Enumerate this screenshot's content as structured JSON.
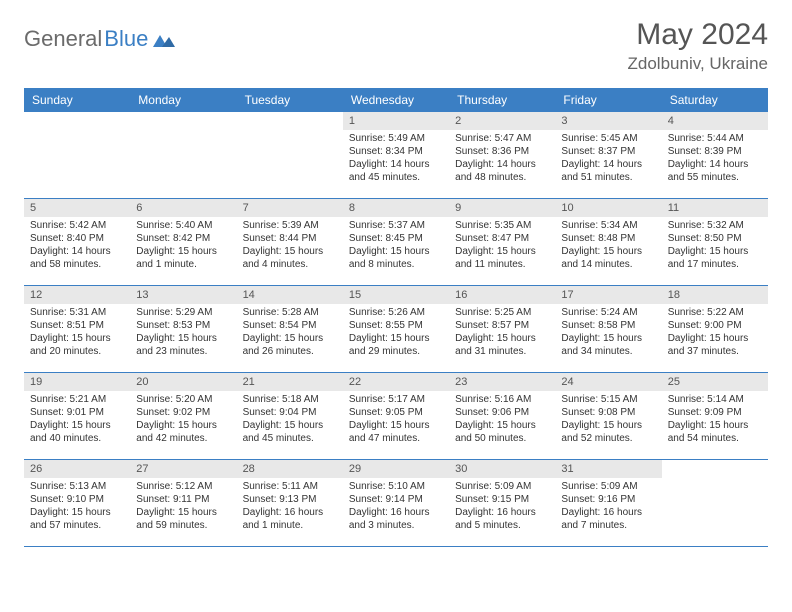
{
  "logo": {
    "part1": "General",
    "part2": "Blue"
  },
  "title": "May 2024",
  "location": "Zdolbuniv, Ukraine",
  "day_names": [
    "Sunday",
    "Monday",
    "Tuesday",
    "Wednesday",
    "Thursday",
    "Friday",
    "Saturday"
  ],
  "colors": {
    "header_bg": "#3b7fc4",
    "header_fg": "#ffffff",
    "daynum_bg": "#e8e8e8",
    "text": "#343434",
    "logo_gray": "#6b6b6b",
    "logo_blue": "#3b7fc4"
  },
  "weeks": [
    [
      {
        "empty": true
      },
      {
        "empty": true
      },
      {
        "empty": true
      },
      {
        "n": "1",
        "sr": "Sunrise: 5:49 AM",
        "ss": "Sunset: 8:34 PM",
        "d1": "Daylight: 14 hours",
        "d2": "and 45 minutes."
      },
      {
        "n": "2",
        "sr": "Sunrise: 5:47 AM",
        "ss": "Sunset: 8:36 PM",
        "d1": "Daylight: 14 hours",
        "d2": "and 48 minutes."
      },
      {
        "n": "3",
        "sr": "Sunrise: 5:45 AM",
        "ss": "Sunset: 8:37 PM",
        "d1": "Daylight: 14 hours",
        "d2": "and 51 minutes."
      },
      {
        "n": "4",
        "sr": "Sunrise: 5:44 AM",
        "ss": "Sunset: 8:39 PM",
        "d1": "Daylight: 14 hours",
        "d2": "and 55 minutes."
      }
    ],
    [
      {
        "n": "5",
        "sr": "Sunrise: 5:42 AM",
        "ss": "Sunset: 8:40 PM",
        "d1": "Daylight: 14 hours",
        "d2": "and 58 minutes."
      },
      {
        "n": "6",
        "sr": "Sunrise: 5:40 AM",
        "ss": "Sunset: 8:42 PM",
        "d1": "Daylight: 15 hours",
        "d2": "and 1 minute."
      },
      {
        "n": "7",
        "sr": "Sunrise: 5:39 AM",
        "ss": "Sunset: 8:44 PM",
        "d1": "Daylight: 15 hours",
        "d2": "and 4 minutes."
      },
      {
        "n": "8",
        "sr": "Sunrise: 5:37 AM",
        "ss": "Sunset: 8:45 PM",
        "d1": "Daylight: 15 hours",
        "d2": "and 8 minutes."
      },
      {
        "n": "9",
        "sr": "Sunrise: 5:35 AM",
        "ss": "Sunset: 8:47 PM",
        "d1": "Daylight: 15 hours",
        "d2": "and 11 minutes."
      },
      {
        "n": "10",
        "sr": "Sunrise: 5:34 AM",
        "ss": "Sunset: 8:48 PM",
        "d1": "Daylight: 15 hours",
        "d2": "and 14 minutes."
      },
      {
        "n": "11",
        "sr": "Sunrise: 5:32 AM",
        "ss": "Sunset: 8:50 PM",
        "d1": "Daylight: 15 hours",
        "d2": "and 17 minutes."
      }
    ],
    [
      {
        "n": "12",
        "sr": "Sunrise: 5:31 AM",
        "ss": "Sunset: 8:51 PM",
        "d1": "Daylight: 15 hours",
        "d2": "and 20 minutes."
      },
      {
        "n": "13",
        "sr": "Sunrise: 5:29 AM",
        "ss": "Sunset: 8:53 PM",
        "d1": "Daylight: 15 hours",
        "d2": "and 23 minutes."
      },
      {
        "n": "14",
        "sr": "Sunrise: 5:28 AM",
        "ss": "Sunset: 8:54 PM",
        "d1": "Daylight: 15 hours",
        "d2": "and 26 minutes."
      },
      {
        "n": "15",
        "sr": "Sunrise: 5:26 AM",
        "ss": "Sunset: 8:55 PM",
        "d1": "Daylight: 15 hours",
        "d2": "and 29 minutes."
      },
      {
        "n": "16",
        "sr": "Sunrise: 5:25 AM",
        "ss": "Sunset: 8:57 PM",
        "d1": "Daylight: 15 hours",
        "d2": "and 31 minutes."
      },
      {
        "n": "17",
        "sr": "Sunrise: 5:24 AM",
        "ss": "Sunset: 8:58 PM",
        "d1": "Daylight: 15 hours",
        "d2": "and 34 minutes."
      },
      {
        "n": "18",
        "sr": "Sunrise: 5:22 AM",
        "ss": "Sunset: 9:00 PM",
        "d1": "Daylight: 15 hours",
        "d2": "and 37 minutes."
      }
    ],
    [
      {
        "n": "19",
        "sr": "Sunrise: 5:21 AM",
        "ss": "Sunset: 9:01 PM",
        "d1": "Daylight: 15 hours",
        "d2": "and 40 minutes."
      },
      {
        "n": "20",
        "sr": "Sunrise: 5:20 AM",
        "ss": "Sunset: 9:02 PM",
        "d1": "Daylight: 15 hours",
        "d2": "and 42 minutes."
      },
      {
        "n": "21",
        "sr": "Sunrise: 5:18 AM",
        "ss": "Sunset: 9:04 PM",
        "d1": "Daylight: 15 hours",
        "d2": "and 45 minutes."
      },
      {
        "n": "22",
        "sr": "Sunrise: 5:17 AM",
        "ss": "Sunset: 9:05 PM",
        "d1": "Daylight: 15 hours",
        "d2": "and 47 minutes."
      },
      {
        "n": "23",
        "sr": "Sunrise: 5:16 AM",
        "ss": "Sunset: 9:06 PM",
        "d1": "Daylight: 15 hours",
        "d2": "and 50 minutes."
      },
      {
        "n": "24",
        "sr": "Sunrise: 5:15 AM",
        "ss": "Sunset: 9:08 PM",
        "d1": "Daylight: 15 hours",
        "d2": "and 52 minutes."
      },
      {
        "n": "25",
        "sr": "Sunrise: 5:14 AM",
        "ss": "Sunset: 9:09 PM",
        "d1": "Daylight: 15 hours",
        "d2": "and 54 minutes."
      }
    ],
    [
      {
        "n": "26",
        "sr": "Sunrise: 5:13 AM",
        "ss": "Sunset: 9:10 PM",
        "d1": "Daylight: 15 hours",
        "d2": "and 57 minutes."
      },
      {
        "n": "27",
        "sr": "Sunrise: 5:12 AM",
        "ss": "Sunset: 9:11 PM",
        "d1": "Daylight: 15 hours",
        "d2": "and 59 minutes."
      },
      {
        "n": "28",
        "sr": "Sunrise: 5:11 AM",
        "ss": "Sunset: 9:13 PM",
        "d1": "Daylight: 16 hours",
        "d2": "and 1 minute."
      },
      {
        "n": "29",
        "sr": "Sunrise: 5:10 AM",
        "ss": "Sunset: 9:14 PM",
        "d1": "Daylight: 16 hours",
        "d2": "and 3 minutes."
      },
      {
        "n": "30",
        "sr": "Sunrise: 5:09 AM",
        "ss": "Sunset: 9:15 PM",
        "d1": "Daylight: 16 hours",
        "d2": "and 5 minutes."
      },
      {
        "n": "31",
        "sr": "Sunrise: 5:09 AM",
        "ss": "Sunset: 9:16 PM",
        "d1": "Daylight: 16 hours",
        "d2": "and 7 minutes."
      },
      {
        "empty": true
      }
    ]
  ]
}
